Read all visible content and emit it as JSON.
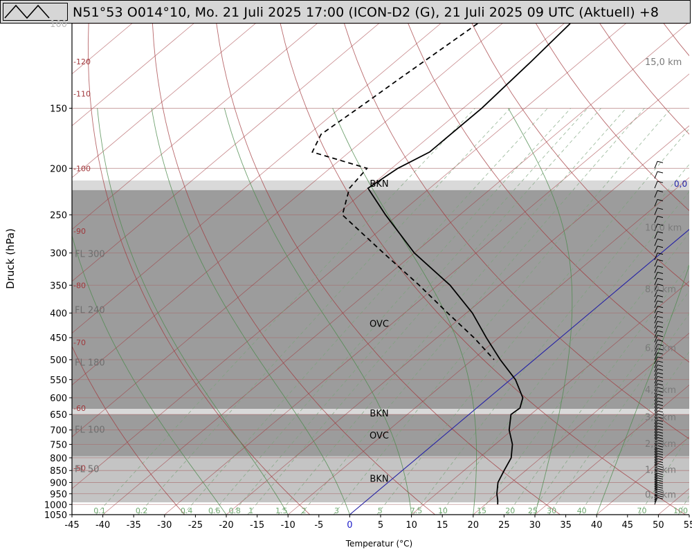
{
  "header": {
    "title": "N51°53 O014°10, Mo. 21 Juli 2025 17:00 (ICON-D2 (G), 21 Juli 2025 09 UTC (Aktuell) +8"
  },
  "chart_data": {
    "type": "line",
    "subtype": "skew-T log-p",
    "xlabel": "Temperatur (°C)",
    "ylabel": "Druck (hPa)",
    "xlim": [
      -45,
      55
    ],
    "ylim": [
      1050,
      100
    ],
    "y_scale": "log",
    "x_ticks": [
      -45,
      -40,
      -35,
      -30,
      -25,
      -20,
      -15,
      -10,
      -5,
      0,
      5,
      10,
      15,
      20,
      25,
      30,
      35,
      40,
      45,
      50,
      55
    ],
    "y_ticks": [
      100,
      150,
      200,
      250,
      300,
      350,
      400,
      450,
      500,
      550,
      600,
      650,
      700,
      750,
      800,
      850,
      900,
      950,
      1000,
      1050
    ],
    "isotherms_skewed": [
      -120,
      -110,
      -100,
      -90,
      -80,
      -70,
      -60,
      -50
    ],
    "isotherm_label_pressures": [
      120,
      140,
      200,
      270,
      350,
      460,
      630,
      840
    ],
    "flight_levels": [
      {
        "label": "FL 300",
        "pressure": 301
      },
      {
        "label": "FL 240",
        "pressure": 393
      },
      {
        "label": "FL 180",
        "pressure": 506
      },
      {
        "label": "FL 100",
        "pressure": 697
      },
      {
        "label": "FL 50",
        "pressure": 843
      }
    ],
    "altitude_labels": [
      {
        "label": "15,0 km",
        "pressure": 120
      },
      {
        "label": "10,0 km",
        "pressure": 265
      },
      {
        "label": "8,0 km",
        "pressure": 356
      },
      {
        "label": "6,0 km",
        "pressure": 472
      },
      {
        "label": "4,5 km",
        "pressure": 577
      },
      {
        "label": "3,5 km",
        "pressure": 657
      },
      {
        "label": "2,5 km",
        "pressure": 747
      },
      {
        "label": "1,5 km",
        "pressure": 845
      },
      {
        "label": "0,5 km",
        "pressure": 953
      }
    ],
    "freezing_level_label": "0,0",
    "mixing_ratio_labels": [
      "0.1",
      "0.2",
      "0.4",
      "0.6",
      "0.8",
      "1",
      "1.5",
      "2",
      "3",
      "5",
      "7.5",
      "10",
      "15",
      "20",
      "25",
      "30",
      "40",
      "70",
      "100"
    ],
    "cloud_layers": [
      {
        "top": 212,
        "bottom": 222,
        "cover": "gap"
      },
      {
        "top": 222,
        "bottom": 633,
        "cover": "dark"
      },
      {
        "top": 633,
        "bottom": 650,
        "cover": "gap"
      },
      {
        "top": 650,
        "bottom": 794,
        "cover": "dark"
      },
      {
        "top": 794,
        "bottom": 990,
        "cover": "light"
      }
    ],
    "cloud_labels": [
      {
        "label": "BKN",
        "pressure": 215
      },
      {
        "label": "OVC",
        "pressure": 420
      },
      {
        "label": "BKN",
        "pressure": 645
      },
      {
        "label": "OVC",
        "pressure": 718
      },
      {
        "label": "BKN",
        "pressure": 882
      }
    ],
    "series": [
      {
        "name": "",
        "style": "solid",
        "pressure": [
          100,
          120,
          150,
          170,
          185,
          200,
          220,
          250,
          300,
          350,
          400,
          450,
          500,
          550,
          600,
          630,
          650,
          700,
          750,
          800,
          850,
          900,
          950,
          980,
          1000
        ],
        "temperature": [
          -59,
          -58,
          -57,
          -57,
          -57,
          -59,
          -60,
          -52,
          -40,
          -28,
          -19,
          -12,
          -5.5,
          0.8,
          5.5,
          7.0,
          6.8,
          9.5,
          12.8,
          15.2,
          16.5,
          17.8,
          19.8,
          21.2,
          22.0
        ]
      },
      {
        "name": "",
        "style": "dashed",
        "pressure": [
          100,
          130,
          150,
          170,
          185,
          200,
          220,
          250,
          300,
          350,
          400,
          450,
          500
        ],
        "temperature": [
          -74,
          -76,
          -77,
          -78,
          -76,
          -64,
          -63,
          -59,
          -45,
          -33,
          -23,
          -14,
          -6.5
        ]
      }
    ],
    "wind_barbs_note": "wind barbs along right edge"
  }
}
